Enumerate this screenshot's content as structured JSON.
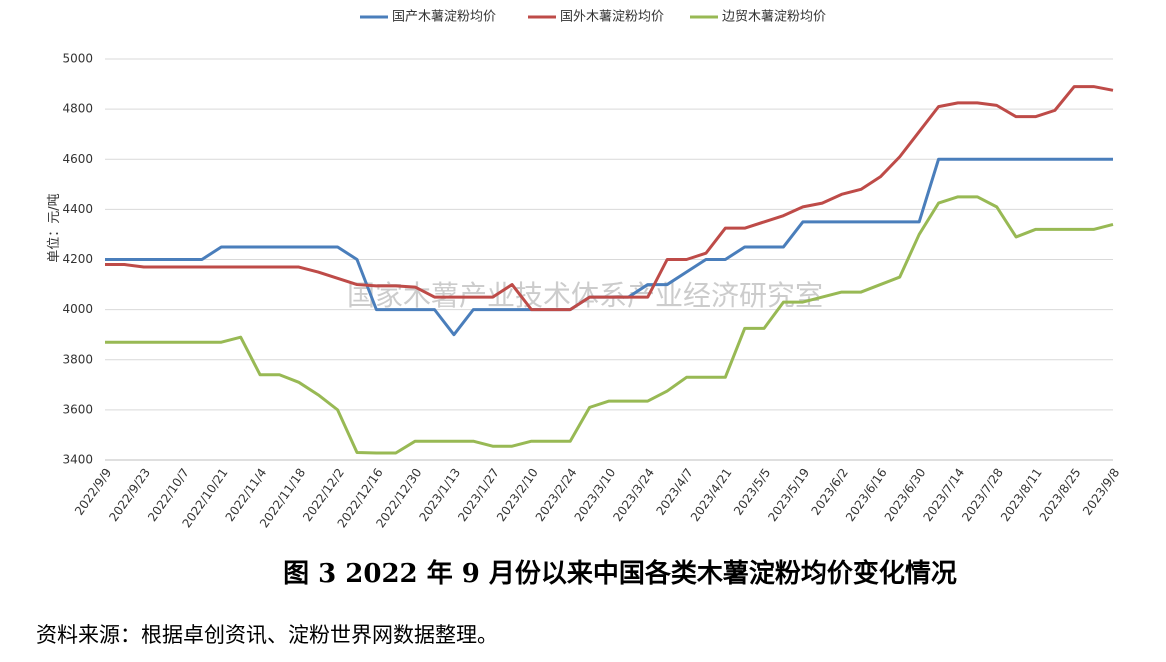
{
  "chart_data": {
    "type": "line",
    "y_axis_label": "单位：元/吨",
    "watermark": "国家木薯产业技术体系产业经济研究室",
    "caption": "图 3   2022 年 9 月份以来中国各类木薯淀粉均价变化情况",
    "source": "资料来源：根据卓创资讯、淀粉世界网数据整理。",
    "categories": [
      "2022/9/9",
      null,
      "2022/9/23",
      null,
      "2022/10/7",
      null,
      "2022/10/21",
      null,
      "2022/11/4",
      null,
      "2022/11/18",
      null,
      "2022/12/2",
      null,
      "2022/12/16",
      null,
      "2022/12/30",
      null,
      "2023/1/13",
      null,
      "2023/1/27",
      null,
      "2023/2/10",
      null,
      "2023/2/24",
      null,
      "2023/3/10",
      null,
      "2023/3/24",
      null,
      "2023/4/7",
      null,
      "2023/4/21",
      null,
      "2023/5/5",
      null,
      "2023/5/19",
      null,
      "2023/6/2",
      null,
      "2023/6/16",
      null,
      "2023/6/30",
      null,
      "2023/7/14",
      null,
      "2023/7/28",
      null,
      "2023/8/11",
      null,
      "2023/8/25",
      null,
      "2023/9/8"
    ],
    "series": [
      {
        "name": "国产木薯淀粉均价",
        "color": "#4a7ebb",
        "values": [
          4200,
          4200,
          4200,
          4200,
          4200,
          4200,
          4250,
          4250,
          4250,
          4250,
          4250,
          4250,
          4250,
          4200,
          4000,
          4000,
          4000,
          4000,
          3900,
          4000,
          4000,
          4000,
          4000,
          4000,
          4000,
          4050,
          4050,
          4050,
          4100,
          4100,
          4150,
          4200,
          4200,
          4250,
          4250,
          4250,
          4350,
          4350,
          4350,
          4350,
          4350,
          4350,
          4350,
          4600,
          4600,
          4600,
          4600,
          4600,
          4600,
          4600,
          4600,
          4600,
          4600
        ]
      },
      {
        "name": "国外木薯淀粉均价",
        "color": "#be4b48",
        "values": [
          4180,
          4180,
          4170,
          4170,
          4170,
          4170,
          4170,
          4170,
          4170,
          4170,
          4170,
          4150,
          4125,
          4100,
          4095,
          4095,
          4090,
          4050,
          4050,
          4050,
          4050,
          4100,
          4000,
          4000,
          4000,
          4050,
          4050,
          4050,
          4050,
          4200,
          4200,
          4225,
          4325,
          4325,
          4350,
          4375,
          4410,
          4425,
          4460,
          4480,
          4530,
          4610,
          4710,
          4810,
          4825,
          4825,
          4815,
          4770,
          4770,
          4795,
          4890,
          4890,
          4875
        ]
      },
      {
        "name": "边贸木薯淀粉均价",
        "color": "#98b954",
        "values": [
          3870,
          3870,
          3870,
          3870,
          3870,
          3870,
          3870,
          3890,
          3740,
          3740,
          3710,
          3660,
          3600,
          3430,
          3428,
          3428,
          3475,
          3475,
          3475,
          3475,
          3455,
          3455,
          3475,
          3475,
          3475,
          3610,
          3635,
          3635,
          3635,
          3675,
          3730,
          3730,
          3730,
          3925,
          3925,
          4030,
          4030,
          4050,
          4070,
          4070,
          4100,
          4130,
          4300,
          4425,
          4450,
          4450,
          4410,
          4290,
          4320,
          4320,
          4320,
          4320,
          4340
        ]
      }
    ],
    "ylim": [
      3400,
      5000
    ],
    "yticks": [
      3400,
      3600,
      3800,
      4000,
      4200,
      4400,
      4600,
      4800,
      5000
    ],
    "grid": true
  }
}
